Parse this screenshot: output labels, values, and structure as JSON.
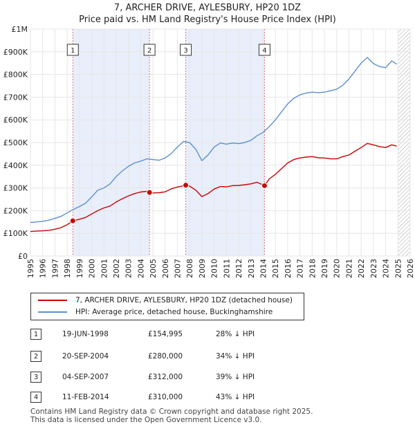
{
  "chart_data": {
    "type": "line",
    "title": "7, ARCHER DRIVE, AYLESBURY, HP20 1DZ",
    "subtitle": "Price paid vs. HM Land Registry's House Price Index (HPI)",
    "xlabel": "",
    "ylabel": "",
    "xlim": [
      1995,
      2026
    ],
    "ylim": [
      0,
      1000000
    ],
    "x_ticks": [
      "1995",
      "1996",
      "1997",
      "1998",
      "1999",
      "2000",
      "2001",
      "2002",
      "2003",
      "2004",
      "2005",
      "2006",
      "2007",
      "2008",
      "2009",
      "2010",
      "2011",
      "2012",
      "2013",
      "2014",
      "2015",
      "2016",
      "2017",
      "2018",
      "2019",
      "2020",
      "2021",
      "2022",
      "2023",
      "2024",
      "2025",
      "2026"
    ],
    "y_ticks": [
      {
        "value": 0,
        "label": "£0"
      },
      {
        "value": 100000,
        "label": "£100K"
      },
      {
        "value": 200000,
        "label": "£200K"
      },
      {
        "value": 300000,
        "label": "£300K"
      },
      {
        "value": 400000,
        "label": "£400K"
      },
      {
        "value": 500000,
        "label": "£500K"
      },
      {
        "value": 600000,
        "label": "£600K"
      },
      {
        "value": 700000,
        "label": "£700K"
      },
      {
        "value": 800000,
        "label": "£800K"
      },
      {
        "value": 900000,
        "label": "£900K"
      },
      {
        "value": 1000000,
        "label": "£1M"
      }
    ],
    "grid": true,
    "series": [
      {
        "name": "7, ARCHER DRIVE, AYLESBURY, HP20 1DZ (detached house)",
        "color": "#cc0000",
        "points": [
          [
            1995.0,
            108000
          ],
          [
            1995.5,
            110000
          ],
          [
            1996.0,
            111000
          ],
          [
            1996.5,
            113000
          ],
          [
            1997.0,
            118000
          ],
          [
            1997.5,
            125000
          ],
          [
            1998.0,
            138000
          ],
          [
            1998.46,
            154995
          ],
          [
            1999.0,
            162000
          ],
          [
            1999.5,
            170000
          ],
          [
            2000.0,
            185000
          ],
          [
            2000.5,
            200000
          ],
          [
            2001.0,
            212000
          ],
          [
            2001.5,
            220000
          ],
          [
            2002.0,
            238000
          ],
          [
            2002.5,
            252000
          ],
          [
            2003.0,
            265000
          ],
          [
            2003.5,
            275000
          ],
          [
            2004.0,
            282000
          ],
          [
            2004.5,
            285000
          ],
          [
            2004.72,
            280000
          ],
          [
            2005.0,
            278000
          ],
          [
            2005.5,
            279000
          ],
          [
            2006.0,
            283000
          ],
          [
            2006.5,
            296000
          ],
          [
            2007.0,
            304000
          ],
          [
            2007.68,
            312000
          ],
          [
            2008.0,
            308000
          ],
          [
            2008.5,
            290000
          ],
          [
            2009.0,
            262000
          ],
          [
            2009.5,
            275000
          ],
          [
            2010.0,
            295000
          ],
          [
            2010.5,
            306000
          ],
          [
            2011.0,
            305000
          ],
          [
            2011.5,
            310000
          ],
          [
            2012.0,
            311000
          ],
          [
            2012.5,
            314000
          ],
          [
            2013.0,
            318000
          ],
          [
            2013.5,
            325000
          ],
          [
            2014.11,
            310000
          ],
          [
            2014.5,
            340000
          ],
          [
            2015.0,
            360000
          ],
          [
            2015.5,
            385000
          ],
          [
            2016.0,
            410000
          ],
          [
            2016.5,
            425000
          ],
          [
            2017.0,
            432000
          ],
          [
            2017.5,
            436000
          ],
          [
            2018.0,
            438000
          ],
          [
            2018.5,
            433000
          ],
          [
            2019.0,
            432000
          ],
          [
            2019.5,
            428000
          ],
          [
            2020.0,
            428000
          ],
          [
            2020.5,
            438000
          ],
          [
            2021.0,
            445000
          ],
          [
            2021.5,
            462000
          ],
          [
            2022.0,
            478000
          ],
          [
            2022.5,
            496000
          ],
          [
            2023.0,
            490000
          ],
          [
            2023.5,
            482000
          ],
          [
            2024.0,
            478000
          ],
          [
            2024.5,
            490000
          ],
          [
            2024.9,
            484000
          ]
        ]
      },
      {
        "name": "HPI: Average price, detached house, Buckinghamshire",
        "color": "#5b8fd0",
        "points": [
          [
            1995.0,
            148000
          ],
          [
            1995.5,
            150000
          ],
          [
            1996.0,
            153000
          ],
          [
            1996.5,
            158000
          ],
          [
            1997.0,
            166000
          ],
          [
            1997.5,
            175000
          ],
          [
            1998.0,
            190000
          ],
          [
            1998.5,
            205000
          ],
          [
            1999.0,
            218000
          ],
          [
            1999.5,
            233000
          ],
          [
            2000.0,
            260000
          ],
          [
            2000.5,
            290000
          ],
          [
            2001.0,
            300000
          ],
          [
            2001.5,
            318000
          ],
          [
            2002.0,
            350000
          ],
          [
            2002.5,
            375000
          ],
          [
            2003.0,
            395000
          ],
          [
            2003.5,
            410000
          ],
          [
            2004.0,
            418000
          ],
          [
            2004.5,
            428000
          ],
          [
            2005.0,
            425000
          ],
          [
            2005.5,
            422000
          ],
          [
            2006.0,
            432000
          ],
          [
            2006.5,
            452000
          ],
          [
            2007.0,
            480000
          ],
          [
            2007.5,
            505000
          ],
          [
            2008.0,
            500000
          ],
          [
            2008.5,
            470000
          ],
          [
            2009.0,
            420000
          ],
          [
            2009.5,
            445000
          ],
          [
            2010.0,
            480000
          ],
          [
            2010.5,
            498000
          ],
          [
            2011.0,
            493000
          ],
          [
            2011.5,
            498000
          ],
          [
            2012.0,
            495000
          ],
          [
            2012.5,
            500000
          ],
          [
            2013.0,
            510000
          ],
          [
            2013.5,
            530000
          ],
          [
            2014.0,
            545000
          ],
          [
            2014.5,
            570000
          ],
          [
            2015.0,
            600000
          ],
          [
            2015.5,
            635000
          ],
          [
            2016.0,
            670000
          ],
          [
            2016.5,
            695000
          ],
          [
            2017.0,
            710000
          ],
          [
            2017.5,
            718000
          ],
          [
            2018.0,
            722000
          ],
          [
            2018.5,
            720000
          ],
          [
            2019.0,
            722000
          ],
          [
            2019.5,
            728000
          ],
          [
            2020.0,
            735000
          ],
          [
            2020.5,
            752000
          ],
          [
            2021.0,
            780000
          ],
          [
            2021.5,
            815000
          ],
          [
            2022.0,
            850000
          ],
          [
            2022.5,
            875000
          ],
          [
            2023.0,
            848000
          ],
          [
            2023.5,
            835000
          ],
          [
            2024.0,
            830000
          ],
          [
            2024.5,
            860000
          ],
          [
            2024.9,
            845000
          ]
        ]
      }
    ],
    "sales": [
      {
        "num": "1",
        "x": 1998.46,
        "price": 154995
      },
      {
        "num": "2",
        "x": 2004.72,
        "price": 280000
      },
      {
        "num": "3",
        "x": 2007.68,
        "price": 312000
      },
      {
        "num": "4",
        "x": 2014.11,
        "price": 310000
      }
    ],
    "shaded_ranges": [
      [
        1998.46,
        2004.72
      ],
      [
        2007.68,
        2014.11
      ]
    ],
    "hatch_from": 2025.0
  },
  "legend": {
    "property_label": "7, ARCHER DRIVE, AYLESBURY, HP20 1DZ (detached house)",
    "hpi_label": "HPI: Average price, detached house, Buckinghamshire"
  },
  "transactions": [
    {
      "num": "1",
      "date": "19-JUN-1998",
      "price": "£154,995",
      "hpi": "28% ↓ HPI"
    },
    {
      "num": "2",
      "date": "20-SEP-2004",
      "price": "£280,000",
      "hpi": "34% ↓ HPI"
    },
    {
      "num": "3",
      "date": "04-SEP-2007",
      "price": "£312,000",
      "hpi": "39% ↓ HPI"
    },
    {
      "num": "4",
      "date": "11-FEB-2014",
      "price": "£310,000",
      "hpi": "43% ↓ HPI"
    }
  ],
  "footer": {
    "line1": "Contains HM Land Registry data © Crown copyright and database right 2025.",
    "line2": "This data is licensed under the Open Government Licence v3.0."
  },
  "colors": {
    "property": "#cc0000",
    "hpi": "#5b8fd0",
    "shade": "#e8eefa",
    "grid": "#e6e6e6"
  }
}
